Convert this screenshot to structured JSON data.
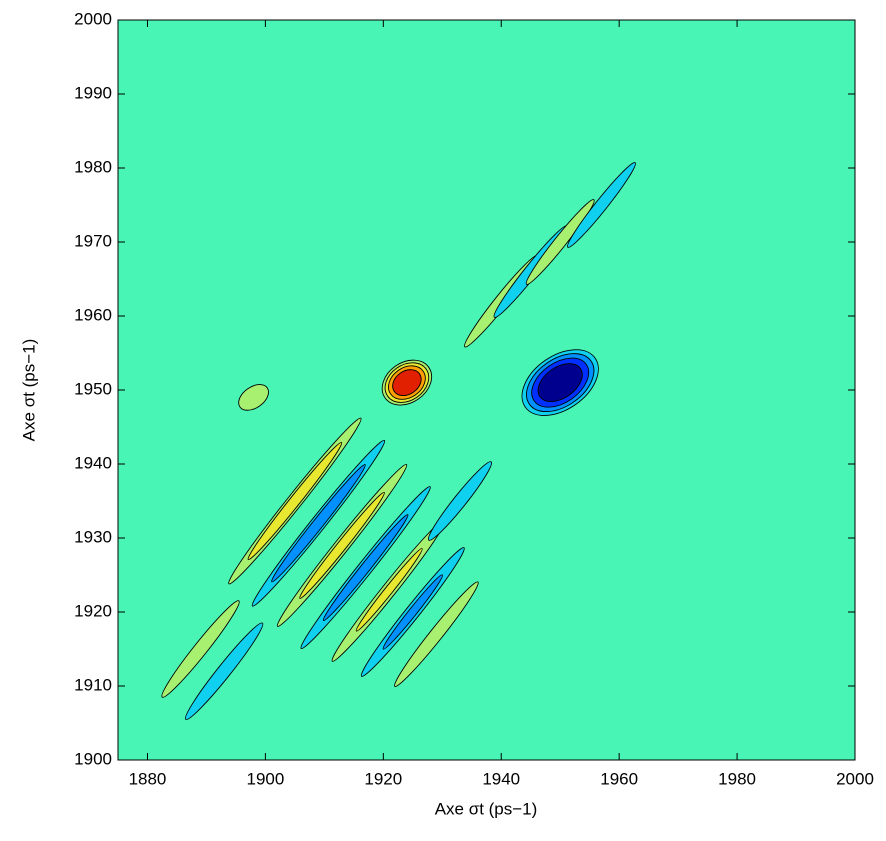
{
  "chart_data": {
    "type": "contour",
    "xlabel": "Axe σt (ps−1)",
    "ylabel": "Axe σt (ps−1)",
    "xlim": [
      1875,
      2000
    ],
    "xticks": [
      1880,
      1900,
      1920,
      1940,
      1960,
      1980,
      2000
    ],
    "ylim": [
      1900,
      2000
    ],
    "yticks": [
      1900,
      1910,
      1920,
      1930,
      1940,
      1950,
      1960,
      1970,
      1980,
      1990,
      2000
    ],
    "background_color": "#48f5b5",
    "contour_levels": [
      -0.8,
      -0.6,
      -0.4,
      -0.2,
      0.2,
      0.4,
      0.6,
      0.8
    ],
    "contour_colors": [
      "#00008f",
      "#0030ff",
      "#0090ff",
      "#10d0f0",
      "#a8f070",
      "#e8e830",
      "#ffa000",
      "#e02000"
    ],
    "features": [
      {
        "x": 1924,
        "y": 1951,
        "rx": 5,
        "ry": 3,
        "level": 1.0
      },
      {
        "x": 1950,
        "y": 1951,
        "rx": 8,
        "ry": 4,
        "level": -1.0
      },
      {
        "x": 1898,
        "y": 1949,
        "rx": 4,
        "ry": 2,
        "level": 0.3
      },
      {
        "x": 1905,
        "y": 1935,
        "rx": 22,
        "ry": 1.2,
        "level": 0.5
      },
      {
        "x": 1909,
        "y": 1932,
        "rx": 22,
        "ry": 1.2,
        "level": -0.5
      },
      {
        "x": 1913,
        "y": 1929,
        "rx": 22,
        "ry": 1.2,
        "level": 0.45
      },
      {
        "x": 1917,
        "y": 1926,
        "rx": 22,
        "ry": 1.2,
        "level": -0.45
      },
      {
        "x": 1921,
        "y": 1923,
        "rx": 20,
        "ry": 1.2,
        "level": 0.4
      },
      {
        "x": 1925,
        "y": 1920,
        "rx": 18,
        "ry": 1.2,
        "level": -0.4
      },
      {
        "x": 1929,
        "y": 1917,
        "rx": 16,
        "ry": 1.2,
        "level": 0.3
      },
      {
        "x": 1933,
        "y": 1935,
        "rx": 12,
        "ry": 1.2,
        "level": -0.3
      },
      {
        "x": 1940,
        "y": 1962,
        "rx": 14,
        "ry": 1.2,
        "level": 0.3
      },
      {
        "x": 1945,
        "y": 1966,
        "rx": 14,
        "ry": 1.2,
        "level": -0.3
      },
      {
        "x": 1950,
        "y": 1970,
        "rx": 14,
        "ry": 1.2,
        "level": 0.25
      },
      {
        "x": 1957,
        "y": 1975,
        "rx": 14,
        "ry": 1.2,
        "level": -0.25
      },
      {
        "x": 1889,
        "y": 1915,
        "rx": 14,
        "ry": 1.2,
        "level": 0.35
      },
      {
        "x": 1893,
        "y": 1912,
        "rx": 14,
        "ry": 1.2,
        "level": -0.35
      }
    ]
  }
}
